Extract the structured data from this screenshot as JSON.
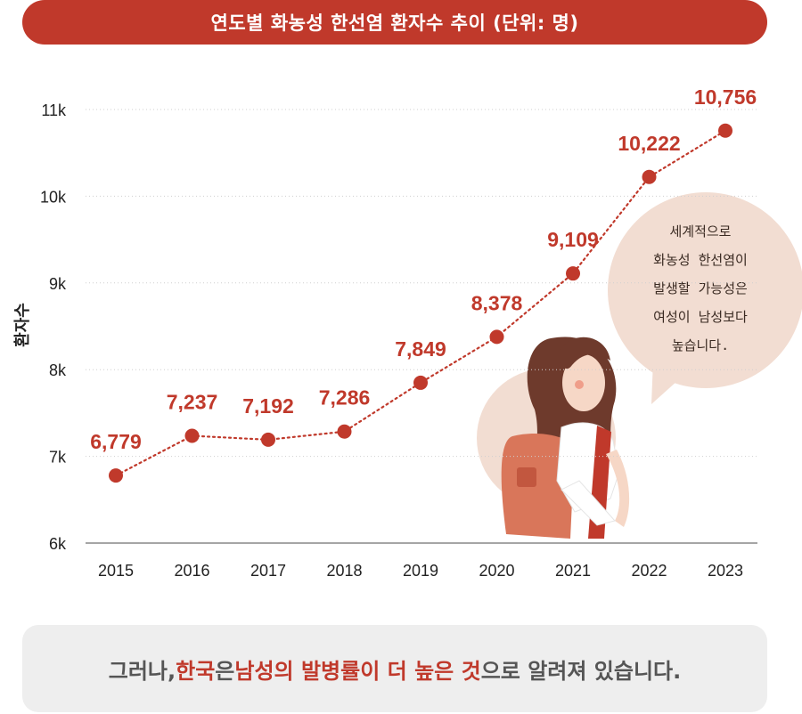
{
  "title": "연도별 화농성 한선염 환자수 추이 (단위: 명)",
  "chart_data": {
    "type": "line",
    "title": "연도별 화농성 한선염 환자수 추이 (단위: 명)",
    "ylabel": "환자수",
    "xlabel": "",
    "categories": [
      "2015",
      "2016",
      "2017",
      "2018",
      "2019",
      "2020",
      "2021",
      "2022",
      "2023"
    ],
    "values": [
      6779,
      7237,
      7192,
      7286,
      7849,
      8378,
      9109,
      10222,
      10756
    ],
    "data_labels": [
      "6,779",
      "7,237",
      "7,192",
      "7,286",
      "7,849",
      "8,378",
      "9,109",
      "10,222",
      "10,756"
    ],
    "yticks": [
      6000,
      7000,
      8000,
      9000,
      10000,
      11000
    ],
    "ytick_labels": [
      "6k",
      "7k",
      "8k",
      "9k",
      "10k",
      "11k"
    ],
    "ylim": [
      6000,
      11000
    ],
    "grid": true,
    "line_style": "dotted",
    "color": "#c0392b"
  },
  "speech_bubble": {
    "lines": [
      "세계적으로",
      "화농성 한선염이",
      "발생할 가능성은",
      "여성이 남성보다",
      "높습니다."
    ]
  },
  "footer": {
    "part1": "그러나, ",
    "highlight1": "한국",
    "part2": "은 ",
    "highlight2": "남성의 발병률이 더 높은 것",
    "part3": "으로 알려져 있습니다."
  }
}
